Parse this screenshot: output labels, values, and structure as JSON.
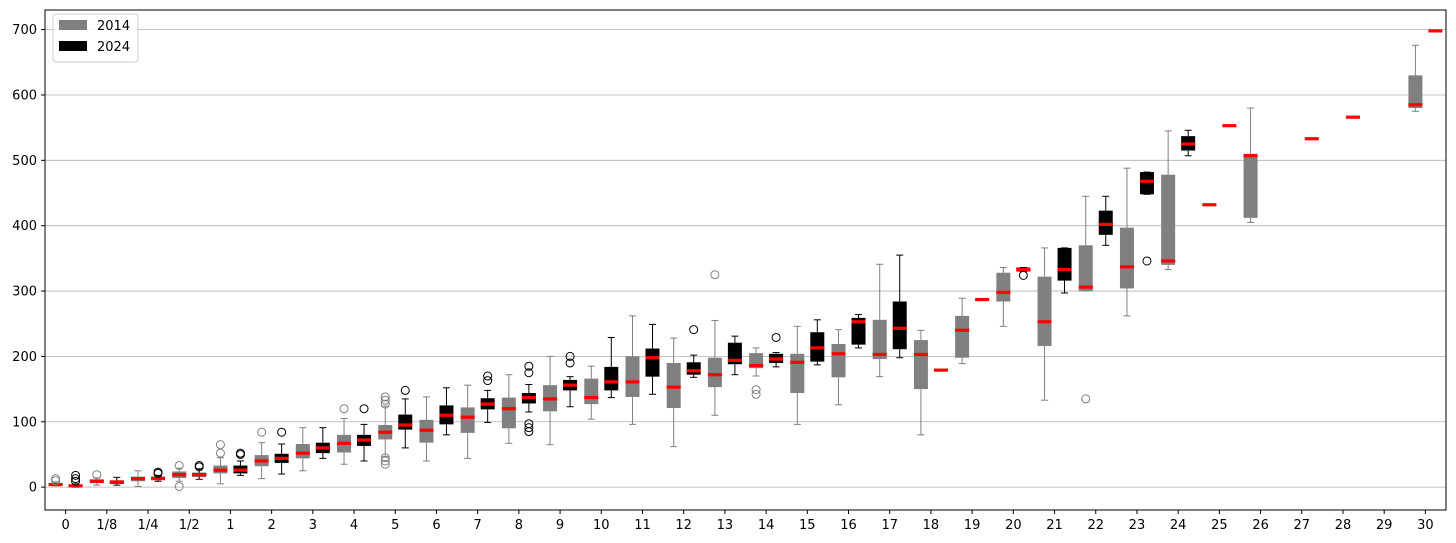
{
  "chart_data": {
    "type": "box",
    "categories": [
      "0",
      "1/8",
      "1/4",
      "1/2",
      "1",
      "2",
      "3",
      "4",
      "5",
      "6",
      "7",
      "8",
      "9",
      "10",
      "11",
      "12",
      "13",
      "14",
      "15",
      "16",
      "17",
      "18",
      "19",
      "20",
      "21",
      "22",
      "23",
      "24",
      "25",
      "26",
      "27",
      "28",
      "29",
      "30"
    ],
    "ylim": [
      -35,
      730
    ],
    "yticks": [
      0,
      100,
      200,
      300,
      400,
      500,
      600,
      700
    ],
    "grid": "y",
    "legend_position": "top-left",
    "median_color": "#ff0000",
    "series": [
      {
        "name": "2014",
        "color": "#808080",
        "boxes": [
          {
            "cat": "0",
            "min": 2,
            "q1": 3,
            "med": 4,
            "q3": 6,
            "max": 8,
            "fliers": [
              10,
              13
            ]
          },
          {
            "cat": "1/8",
            "min": 3,
            "q1": 6,
            "med": 9,
            "q3": 12,
            "max": 14,
            "fliers": [
              19
            ]
          },
          {
            "cat": "1/4",
            "min": 1,
            "q1": 9,
            "med": 13,
            "q3": 16,
            "max": 25,
            "fliers": []
          },
          {
            "cat": "1/2",
            "min": 9,
            "q1": 14,
            "med": 19,
            "q3": 24,
            "max": 29,
            "fliers": [
              1,
              33
            ]
          },
          {
            "cat": "1",
            "min": 5,
            "q1": 21,
            "med": 26,
            "q3": 33,
            "max": 45,
            "fliers": [
              52,
              65
            ]
          },
          {
            "cat": "2",
            "min": 13,
            "q1": 32,
            "med": 40,
            "q3": 49,
            "max": 68,
            "fliers": [
              84
            ]
          },
          {
            "cat": "3",
            "min": 25,
            "q1": 44,
            "med": 52,
            "q3": 66,
            "max": 91,
            "fliers": []
          },
          {
            "cat": "4",
            "min": 35,
            "q1": 53,
            "med": 67,
            "q3": 80,
            "max": 105,
            "fliers": [
              120
            ]
          },
          {
            "cat": "5",
            "min": 47,
            "q1": 73,
            "med": 84,
            "q3": 95,
            "max": 124,
            "fliers": [
              35,
              40,
              45,
              127,
              133,
              138
            ]
          },
          {
            "cat": "6",
            "min": 40,
            "q1": 68,
            "med": 87,
            "q3": 103,
            "max": 138,
            "fliers": []
          },
          {
            "cat": "7",
            "min": 44,
            "q1": 83,
            "med": 107,
            "q3": 122,
            "max": 156,
            "fliers": []
          },
          {
            "cat": "8",
            "min": 67,
            "q1": 90,
            "med": 120,
            "q3": 137,
            "max": 172,
            "fliers": []
          },
          {
            "cat": "9",
            "min": 65,
            "q1": 116,
            "med": 135,
            "q3": 156,
            "max": 200,
            "fliers": []
          },
          {
            "cat": "10",
            "min": 104,
            "q1": 127,
            "med": 137,
            "q3": 166,
            "max": 185,
            "fliers": []
          },
          {
            "cat": "11",
            "min": 96,
            "q1": 138,
            "med": 161,
            "q3": 200,
            "max": 262,
            "fliers": []
          },
          {
            "cat": "12",
            "min": 62,
            "q1": 121,
            "med": 153,
            "q3": 190,
            "max": 228,
            "fliers": []
          },
          {
            "cat": "13",
            "min": 110,
            "q1": 153,
            "med": 172,
            "q3": 198,
            "max": 255,
            "fliers": [
              325
            ]
          },
          {
            "cat": "14",
            "min": 170,
            "q1": 182,
            "med": 186,
            "q3": 205,
            "max": 213,
            "fliers": [
              142,
              149
            ]
          },
          {
            "cat": "15",
            "min": 96,
            "q1": 144,
            "med": 191,
            "q3": 204,
            "max": 246,
            "fliers": []
          },
          {
            "cat": "16",
            "min": 126,
            "q1": 168,
            "med": 204,
            "q3": 219,
            "max": 241,
            "fliers": []
          },
          {
            "cat": "17",
            "min": 169,
            "q1": 196,
            "med": 203,
            "q3": 256,
            "max": 341,
            "fliers": []
          },
          {
            "cat": "18",
            "min": 80,
            "q1": 150,
            "med": 203,
            "q3": 225,
            "max": 240,
            "fliers": []
          },
          {
            "cat": "19",
            "min": 189,
            "q1": 198,
            "med": 240,
            "q3": 262,
            "max": 289,
            "fliers": []
          },
          {
            "cat": "20",
            "min": 246,
            "q1": 284,
            "med": 298,
            "q3": 328,
            "max": 336,
            "fliers": []
          },
          {
            "cat": "21",
            "min": 133,
            "q1": 216,
            "med": 253,
            "q3": 322,
            "max": 366,
            "fliers": []
          },
          {
            "cat": "22",
            "min": 300,
            "q1": 300,
            "med": 306,
            "q3": 370,
            "max": 445,
            "fliers": [
              135
            ]
          },
          {
            "cat": "23",
            "min": 262,
            "q1": 304,
            "med": 337,
            "q3": 397,
            "max": 488,
            "fliers": []
          },
          {
            "cat": "24",
            "min": 333,
            "q1": 340,
            "med": 346,
            "q3": 478,
            "max": 545,
            "fliers": []
          },
          {
            "cat": "26",
            "min": 405,
            "q1": 412,
            "med": 507,
            "q3": 510,
            "max": 580,
            "fliers": []
          },
          {
            "cat": "30",
            "min": 575,
            "q1": 580,
            "med": 585,
            "q3": 630,
            "max": 676,
            "fliers": []
          }
        ]
      },
      {
        "name": "2024",
        "color": "#000000",
        "boxes": [
          {
            "cat": "0",
            "min": 0,
            "q1": 1,
            "med": 2,
            "q3": 4,
            "max": 5,
            "fliers": [
              9,
              13,
              18
            ]
          },
          {
            "cat": "1/8",
            "min": 3,
            "q1": 5,
            "med": 8,
            "q3": 10,
            "max": 15,
            "fliers": []
          },
          {
            "cat": "1/4",
            "min": 9,
            "q1": 11,
            "med": 13,
            "q3": 16,
            "max": 18,
            "fliers": [
              21,
              23
            ]
          },
          {
            "cat": "1/2",
            "min": 12,
            "q1": 16,
            "med": 19,
            "q3": 22,
            "max": 28,
            "fliers": [
              31,
              33
            ]
          },
          {
            "cat": "1",
            "min": 18,
            "q1": 21,
            "med": 26,
            "q3": 33,
            "max": 40,
            "fliers": [
              50,
              52
            ]
          },
          {
            "cat": "2",
            "min": 20,
            "q1": 37,
            "med": 44,
            "q3": 51,
            "max": 66,
            "fliers": [
              84
            ]
          },
          {
            "cat": "3",
            "min": 44,
            "q1": 52,
            "med": 60,
            "q3": 68,
            "max": 91,
            "fliers": []
          },
          {
            "cat": "4",
            "min": 40,
            "q1": 63,
            "med": 72,
            "q3": 80,
            "max": 96,
            "fliers": [
              120
            ]
          },
          {
            "cat": "5",
            "min": 60,
            "q1": 88,
            "med": 95,
            "q3": 111,
            "max": 135,
            "fliers": [
              148
            ]
          },
          {
            "cat": "6",
            "min": 80,
            "q1": 96,
            "med": 110,
            "q3": 125,
            "max": 152,
            "fliers": []
          },
          {
            "cat": "7",
            "min": 99,
            "q1": 119,
            "med": 127,
            "q3": 136,
            "max": 148,
            "fliers": [
              163,
              170
            ]
          },
          {
            "cat": "8",
            "min": 115,
            "q1": 128,
            "med": 137,
            "q3": 144,
            "max": 157,
            "fliers": [
              85,
              91,
              97,
              175,
              185
            ]
          },
          {
            "cat": "9",
            "min": 123,
            "q1": 148,
            "med": 156,
            "q3": 164,
            "max": 169,
            "fliers": [
              190,
              200
            ]
          },
          {
            "cat": "10",
            "min": 137,
            "q1": 148,
            "med": 161,
            "q3": 184,
            "max": 229,
            "fliers": []
          },
          {
            "cat": "11",
            "min": 142,
            "q1": 169,
            "med": 198,
            "q3": 212,
            "max": 249,
            "fliers": []
          },
          {
            "cat": "12",
            "min": 168,
            "q1": 172,
            "med": 178,
            "q3": 191,
            "max": 202,
            "fliers": [
              241
            ]
          },
          {
            "cat": "13",
            "min": 172,
            "q1": 188,
            "med": 194,
            "q3": 221,
            "max": 231,
            "fliers": []
          },
          {
            "cat": "14",
            "min": 184,
            "q1": 190,
            "med": 196,
            "q3": 204,
            "max": 206,
            "fliers": [
              229
            ]
          },
          {
            "cat": "15",
            "min": 187,
            "q1": 192,
            "med": 213,
            "q3": 237,
            "max": 256,
            "fliers": []
          },
          {
            "cat": "16",
            "min": 213,
            "q1": 218,
            "med": 253,
            "q3": 259,
            "max": 264,
            "fliers": []
          },
          {
            "cat": "17",
            "min": 198,
            "q1": 211,
            "med": 243,
            "q3": 284,
            "max": 355,
            "fliers": []
          },
          {
            "cat": "18",
            "min": 179,
            "q1": 179,
            "med": 179,
            "q3": 179,
            "max": 179,
            "fliers": []
          },
          {
            "cat": "19",
            "min": 287,
            "q1": 287,
            "med": 287,
            "q3": 287,
            "max": 287,
            "fliers": []
          },
          {
            "cat": "20",
            "min": 330,
            "q1": 330,
            "med": 333,
            "q3": 336,
            "max": 336,
            "fliers": [
              324
            ]
          },
          {
            "cat": "21",
            "min": 297,
            "q1": 316,
            "med": 333,
            "q3": 366,
            "max": 366,
            "fliers": []
          },
          {
            "cat": "22",
            "min": 370,
            "q1": 386,
            "med": 402,
            "q3": 423,
            "max": 445,
            "fliers": []
          },
          {
            "cat": "23",
            "min": 448,
            "q1": 448,
            "med": 468,
            "q3": 482,
            "max": 482,
            "fliers": [
              346
            ]
          },
          {
            "cat": "24",
            "min": 507,
            "q1": 515,
            "med": 525,
            "q3": 537,
            "max": 546,
            "fliers": []
          },
          {
            "cat": "25",
            "min": 553,
            "q1": 553,
            "med": 553,
            "q3": 553,
            "max": 553,
            "fliers": []
          },
          {
            "cat": "27",
            "min": 533,
            "q1": 533,
            "med": 533,
            "q3": 533,
            "max": 533,
            "fliers": []
          },
          {
            "cat": "28",
            "min": 566,
            "q1": 566,
            "med": 566,
            "q3": 566,
            "max": 566,
            "fliers": []
          },
          {
            "cat": "30",
            "min": 698,
            "q1": 698,
            "med": 698,
            "q3": 698,
            "max": 698,
            "fliers": []
          }
        ]
      },
      {
        "name": "",
        "color": "#808080",
        "legend": false,
        "boxes": [
          {
            "cat": "25",
            "min": 432,
            "q1": 432,
            "med": 432,
            "q3": 432,
            "max": 432,
            "fliers": [],
            "offset": "2014"
          }
        ]
      }
    ]
  }
}
